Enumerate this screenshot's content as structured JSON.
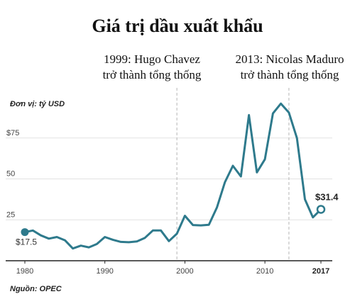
{
  "chart_data": {
    "type": "line",
    "title": "Giá trị dầu xuất khẩu",
    "unit_label": "Đơn vị: tỷ USD",
    "source": "Nguồn: OPEC",
    "ylim": [
      0,
      100
    ],
    "xlim": [
      1980,
      2017
    ],
    "y_ticks": [
      {
        "value": 75,
        "label": "$75"
      },
      {
        "value": 50,
        "label": "50"
      },
      {
        "value": 25,
        "label": "25"
      }
    ],
    "x_ticks": [
      {
        "value": 1980,
        "label": "1980"
      },
      {
        "value": 1990,
        "label": "1990"
      },
      {
        "value": 2000,
        "label": "2000"
      },
      {
        "value": 2010,
        "label": "2010"
      },
      {
        "value": 2017,
        "label": "2017"
      }
    ],
    "grid": true,
    "line_color": "#2e7a8c",
    "series": [
      {
        "x": [
          1980,
          1981,
          1982,
          1983,
          1984,
          1985,
          1986,
          1987,
          1988,
          1989,
          1990,
          1991,
          1992,
          1993,
          1994,
          1995,
          1996,
          1997,
          1998,
          1999,
          2000,
          2001,
          2002,
          2003,
          2004,
          2005,
          2006,
          2007,
          2008,
          2009,
          2010,
          2011,
          2012,
          2013,
          2014,
          2015,
          2016,
          2017
        ],
        "values": [
          17.5,
          18.5,
          15.5,
          13.5,
          14.5,
          12.5,
          7.5,
          9.2,
          8.2,
          10.2,
          14.5,
          12.8,
          11.5,
          11.3,
          11.8,
          14,
          18.5,
          18.5,
          12,
          16.5,
          27.5,
          21.8,
          21.6,
          22,
          32.5,
          48,
          58,
          51.5,
          89,
          54,
          62,
          90,
          96,
          90.5,
          75,
          37.5,
          26.5,
          31.4
        ]
      }
    ],
    "data_labels": [
      {
        "x": 1980,
        "y": 17.5,
        "text": "$17.5"
      },
      {
        "x": 2017,
        "y": 31.4,
        "text": "$31.4"
      }
    ],
    "annotations": [
      {
        "x": 1999,
        "line1": "1999: Hugo Chavez",
        "line2": "trở thành tổng thống"
      },
      {
        "x": 2013,
        "line1": "2013: Nicolas Maduro",
        "line2": "trở thành tổng thống"
      }
    ]
  }
}
